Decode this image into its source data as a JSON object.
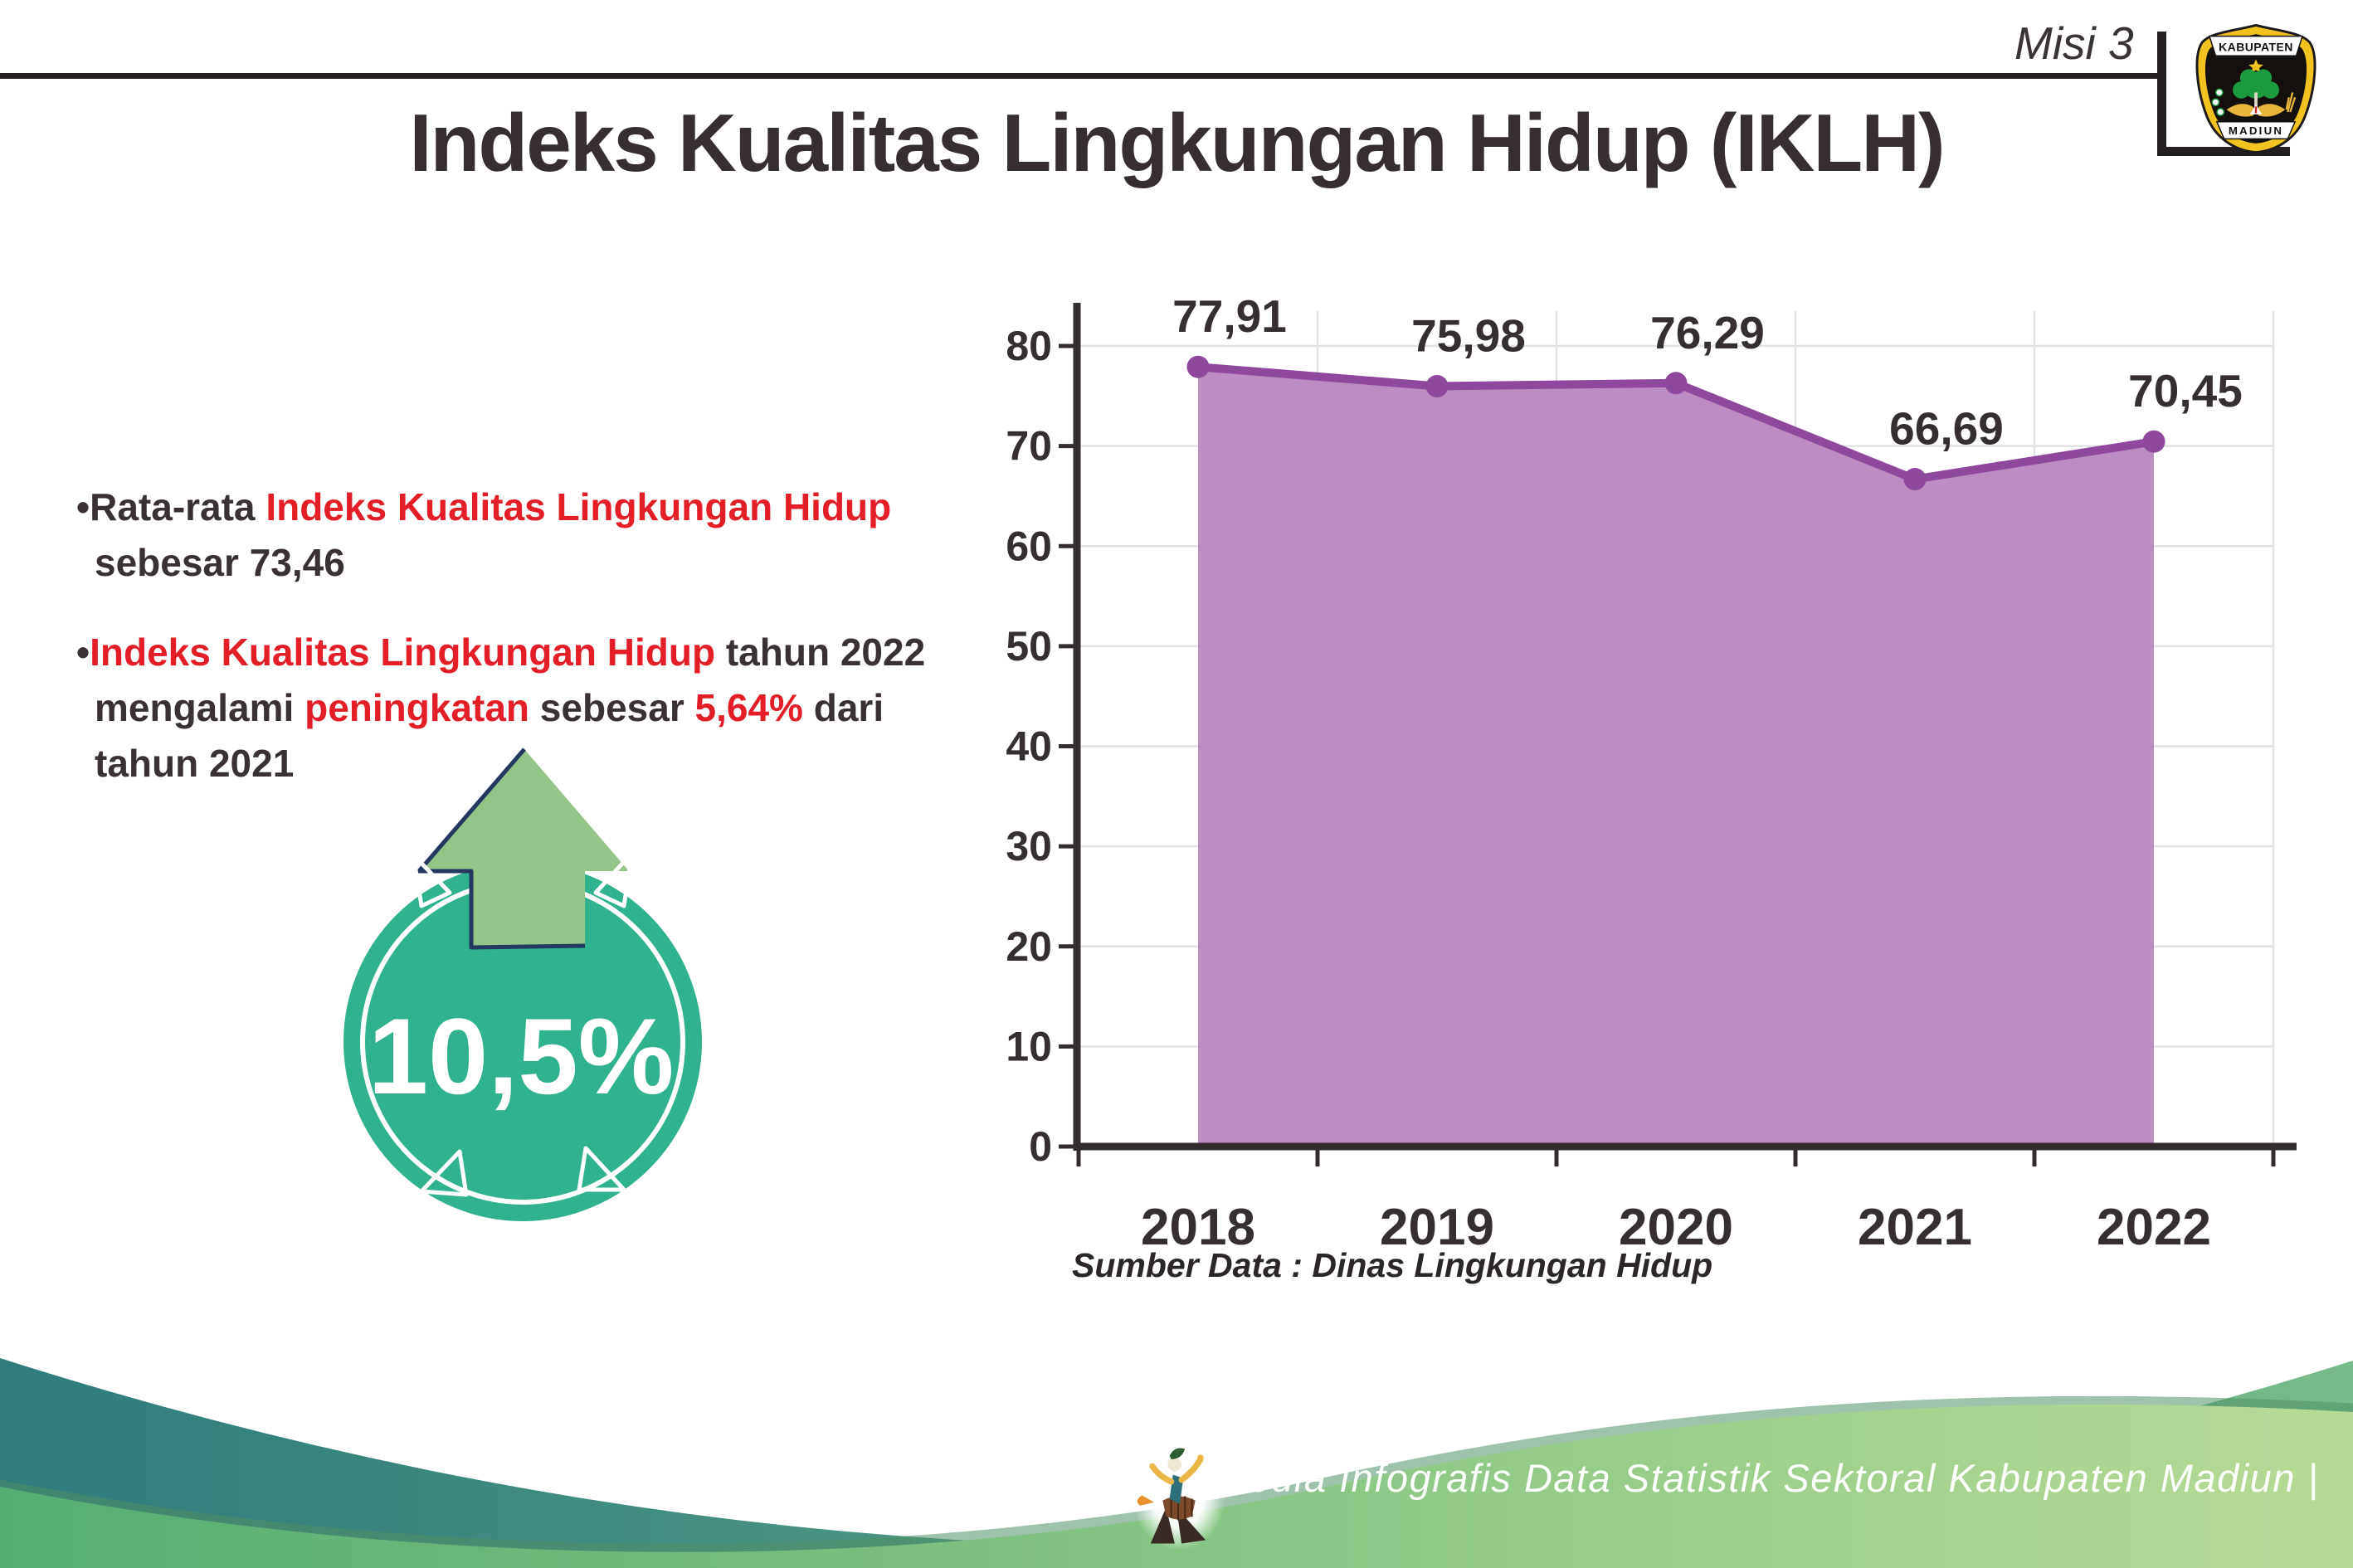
{
  "header": {
    "misi_label": "Misi 3",
    "title": "Indeks Kualitas Lingkungan Hidup (IKLH)",
    "logo": {
      "top_text": "KABUPATEN",
      "bottom_text": "MADIUN"
    }
  },
  "text_colors": {
    "red": "#e41e26",
    "dark": "#393134"
  },
  "bullet_marker": "•",
  "bullets": [
    {
      "segments": [
        {
          "text": "Rata-rata ",
          "color": "dark"
        },
        {
          "text": "Indeks Kualitas Lingkungan Hidup",
          "color": "red"
        },
        {
          "text": " sebesar 73,46",
          "color": "dark"
        }
      ]
    },
    {
      "segments": [
        {
          "text": "Indeks Kualitas Lingkungan Hidup",
          "color": "red"
        },
        {
          "text": " tahun 2022 mengalami ",
          "color": "dark"
        },
        {
          "text": "peningkatan",
          "color": "red"
        },
        {
          "text": " sebesar ",
          "color": "dark"
        },
        {
          "text": "5,64%",
          "color": "red"
        },
        {
          "text": " dari tahun 2021",
          "color": "dark"
        }
      ]
    }
  ],
  "badge": {
    "value": "10,5%",
    "circle_color": "#2fb28d",
    "arrow_color": "#95c489",
    "arrow_outline": "#253860"
  },
  "chart_data": {
    "type": "area",
    "title": "",
    "categories": [
      "2018",
      "2019",
      "2020",
      "2021",
      "2022"
    ],
    "values": [
      77.91,
      75.98,
      76.29,
      66.69,
      70.45
    ],
    "value_labels": [
      "77,91",
      "75,98",
      "76,29",
      "66,69",
      "70,45"
    ],
    "xlabel": "",
    "ylabel": "",
    "ylim": [
      0,
      80
    ],
    "ytick_step": 10,
    "grid": true,
    "legend": "none",
    "line_color": "#8e489e",
    "fill_color": "#b683bd",
    "axis_color": "#332d2f",
    "label_color": "#362f31",
    "grid_color": "#e2e2e2"
  },
  "source_label": "Sumber Data : Dinas Lingkungan Hidup",
  "footer": {
    "caption": "Media Infografis Data Statistik Sektoral Kabupaten Madiun |"
  }
}
